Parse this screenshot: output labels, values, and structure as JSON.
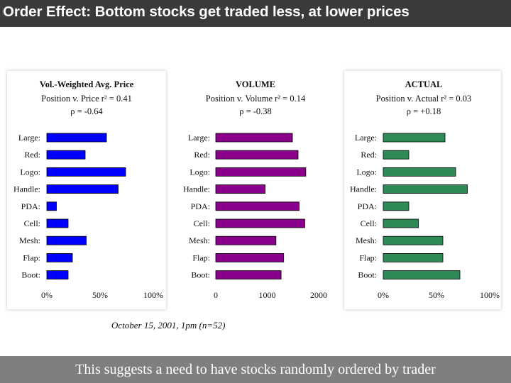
{
  "slide": {
    "title": "Order Effect: Bottom stocks get traded less, at lower prices",
    "caption": "October 15, 2001, 1pm (n=52)",
    "footer": "This suggests a need to have stocks randomly ordered by trader"
  },
  "chart_data": [
    {
      "type": "bar",
      "orientation": "horizontal",
      "title": "Vol.-Weighted Avg. Price",
      "subtitle": "Position v. Price r² = 0.41",
      "annotation": "ρ = -0.64",
      "categories": [
        "Large:",
        "Red:",
        "Logo:",
        "Handle:",
        "PDA:",
        "Cell:",
        "Mesh:",
        "Flap:",
        "Boot:"
      ],
      "values": [
        56,
        36,
        74,
        67,
        9,
        20,
        37,
        24,
        20
      ],
      "value_unit": "percent",
      "xlim": [
        0,
        100
      ],
      "tick_labels": [
        "0%",
        "50%",
        "100%"
      ],
      "color": "#0000ff"
    },
    {
      "type": "bar",
      "orientation": "horizontal",
      "title": "VOLUME",
      "subtitle": "Position v. Volume r² = 0.14",
      "annotation": "ρ = -0.38",
      "categories": [
        "Large:",
        "Red:",
        "Logo:",
        "Handle:",
        "PDA:",
        "Cell:",
        "Mesh:",
        "Flap:",
        "Boot:"
      ],
      "values": [
        1490,
        1600,
        1750,
        960,
        1620,
        1730,
        1170,
        1320,
        1270
      ],
      "xlim": [
        0,
        2000
      ],
      "tick_labels": [
        "0",
        "1000",
        "2000"
      ],
      "color": "#8b008b"
    },
    {
      "type": "bar",
      "orientation": "horizontal",
      "title": "ACTUAL",
      "subtitle": "Position v. Actual r² = 0.03",
      "annotation": "ρ = +0.18",
      "categories": [
        "Large:",
        "Red:",
        "Logo:",
        "Handle:",
        "PDA:",
        "Cell:",
        "Mesh:",
        "Flap:",
        "Boot:"
      ],
      "values": [
        58,
        24,
        68,
        79,
        24,
        33,
        56,
        56,
        72
      ],
      "value_unit": "percent",
      "xlim": [
        0,
        100
      ],
      "tick_labels": [
        "0%",
        "50%",
        "100%"
      ],
      "color": "#2e8b57"
    }
  ]
}
